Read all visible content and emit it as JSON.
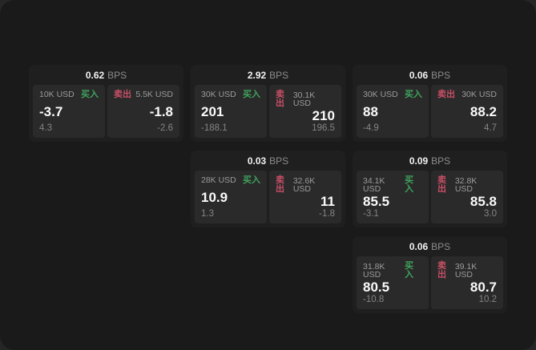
{
  "labels": {
    "buy": "买入",
    "sell": "卖出",
    "bps": "BPS"
  },
  "colors": {
    "page_background": "#1a1a1a",
    "backdrop": "#262626",
    "card_background": "#1f1f1f",
    "panel_background": "#2a2a2a",
    "buy_green": "#3fa35c",
    "sell_red": "#c74f66",
    "value_text": "#fafafa",
    "muted_text": "#8c8c8c"
  },
  "cards": [
    {
      "bps": "0.62",
      "buy": {
        "size": "10K USD",
        "value": "-3.7",
        "sub": "4.3"
      },
      "sell": {
        "size": "5.5K USD",
        "value": "-1.8",
        "sub": "-2.6"
      }
    },
    {
      "bps": "2.92",
      "buy": {
        "size": "30K USD",
        "value": "201",
        "sub": "-188.1"
      },
      "sell": {
        "size": "30.1K USD",
        "value": "210",
        "sub": "196.5"
      }
    },
    {
      "bps": "0.06",
      "buy": {
        "size": "30K USD",
        "value": "88",
        "sub": "-4.9"
      },
      "sell": {
        "size": "30K USD",
        "value": "88.2",
        "sub": "4.7"
      }
    },
    {
      "bps": "0.03",
      "buy": {
        "size": "28K USD",
        "value": "10.9",
        "sub": "1.3"
      },
      "sell": {
        "size": "32.6K USD",
        "value": "11",
        "sub": "-1.8"
      }
    },
    {
      "bps": "0.09",
      "buy": {
        "size": "34.1K USD",
        "value": "85.5",
        "sub": "-3.1"
      },
      "sell": {
        "size": "32.8K USD",
        "value": "85.8",
        "sub": "3.0"
      }
    },
    {
      "bps": "0.06",
      "buy": {
        "size": "31.8K USD",
        "value": "80.5",
        "sub": "-10.8"
      },
      "sell": {
        "size": "39.1K USD",
        "value": "80.7",
        "sub": "10.2"
      }
    }
  ]
}
